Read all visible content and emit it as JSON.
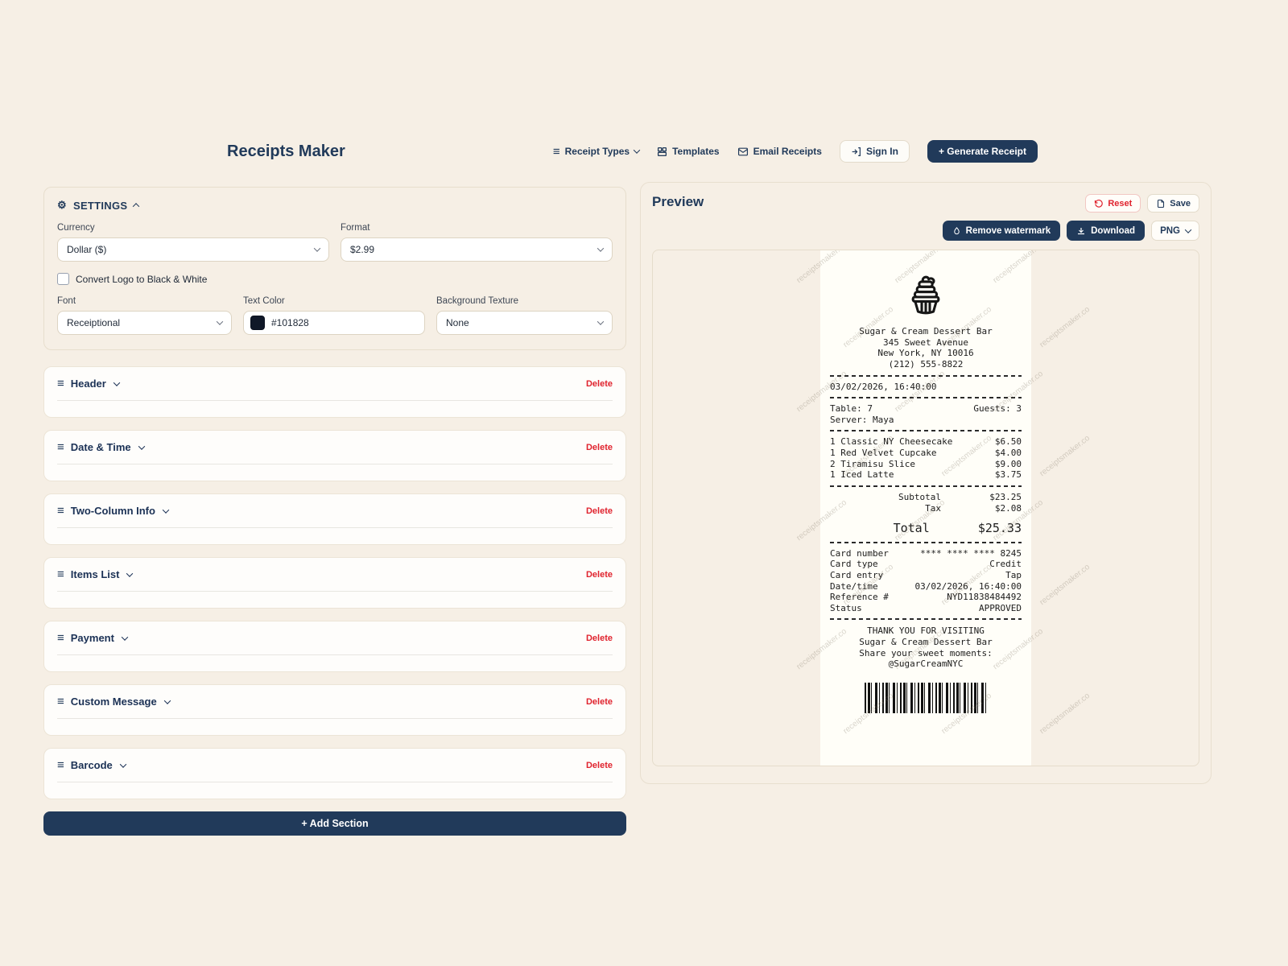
{
  "app": {
    "title": "Receipts Maker"
  },
  "nav": {
    "receipt_types": "Receipt Types",
    "templates": "Templates",
    "email_receipts": "Email Receipts",
    "sign_in": "Sign In",
    "generate_receipt": "+ Generate Receipt"
  },
  "settings": {
    "title": "SETTINGS",
    "currency_label": "Currency",
    "currency_value": "Dollar ($)",
    "format_label": "Format",
    "format_value": "$2.99",
    "convert_logo_label": "Convert Logo to Black & White",
    "font_label": "Font",
    "font_value": "Receiptional",
    "text_color_label": "Text Color",
    "text_color_value": "#101828",
    "background_texture_label": "Background Texture",
    "background_texture_value": "None"
  },
  "ui": {
    "delete_label": "Delete",
    "add_section_label": "+ Add Section"
  },
  "sections": [
    {
      "label": "Header"
    },
    {
      "label": "Date & Time"
    },
    {
      "label": "Two-Column Info"
    },
    {
      "label": "Items List"
    },
    {
      "label": "Payment"
    },
    {
      "label": "Custom Message"
    },
    {
      "label": "Barcode"
    }
  ],
  "preview": {
    "title": "Preview",
    "reset_label": "Reset",
    "save_label": "Save",
    "remove_watermark_label": "Remove watermark",
    "download_label": "Download",
    "format_value": "PNG",
    "watermark_text": "receiptsmaker.co"
  },
  "receipt": {
    "store_name": "Sugar & Cream Dessert Bar",
    "address": "345 Sweet Avenue",
    "city": "New York, NY 10016",
    "phone": "(212) 555-8822",
    "datetime": "03/02/2026, 16:40:00",
    "table": "Table: 7",
    "guests": "Guests: 3",
    "server": "Server: Maya",
    "items": [
      {
        "name": "1 Classic NY Cheesecake",
        "price": "$6.50"
      },
      {
        "name": "1 Red Velvet Cupcake",
        "price": "$4.00"
      },
      {
        "name": "2 Tiramisu Slice",
        "price": "$9.00"
      },
      {
        "name": "1 Iced Latte",
        "price": "$3.75"
      }
    ],
    "subtotal_label": "Subtotal",
    "subtotal": "$23.25",
    "tax_label": "Tax",
    "tax": "$2.08",
    "total_label": "Total",
    "total": "$25.33",
    "payment_rows": [
      {
        "label": "Card number",
        "value": "**** **** **** 8245"
      },
      {
        "label": "Card type",
        "value": "Credit"
      },
      {
        "label": "Card entry",
        "value": "Tap"
      },
      {
        "label": "Date/time",
        "value": "03/02/2026, 16:40:00"
      },
      {
        "label": "Reference #",
        "value": "NYD11838484492"
      },
      {
        "label": "Status",
        "value": "APPROVED"
      }
    ],
    "footer": [
      "THANK YOU FOR VISITING",
      "Sugar & Cream Dessert Bar",
      "Share your sweet moments:",
      "@SugarCreamNYC"
    ]
  },
  "colors": {
    "navy": "#213a5a",
    "red": "#e0232e",
    "cream": "#f6efe5",
    "text_color": "#101828"
  }
}
